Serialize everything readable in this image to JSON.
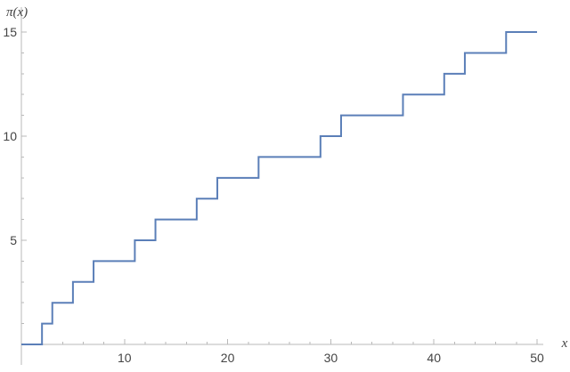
{
  "chart_data": {
    "type": "line",
    "title": "",
    "xlabel": "x",
    "ylabel": "π(x)",
    "xlim": [
      0,
      50
    ],
    "ylim": [
      0,
      15
    ],
    "x_ticks": [
      10,
      20,
      30,
      40,
      50
    ],
    "y_ticks": [
      5,
      10,
      15
    ],
    "grid": false,
    "legend": "none",
    "line_color": "#5b7fb8",
    "series": [
      {
        "x": [
          0,
          2,
          3,
          5,
          7,
          11,
          13,
          17,
          19,
          23,
          29,
          31,
          37,
          41,
          43,
          47,
          50
        ],
        "values": [
          0,
          1,
          2,
          3,
          4,
          5,
          6,
          7,
          8,
          9,
          10,
          11,
          12,
          13,
          14,
          15,
          15
        ],
        "step": "post"
      }
    ]
  }
}
